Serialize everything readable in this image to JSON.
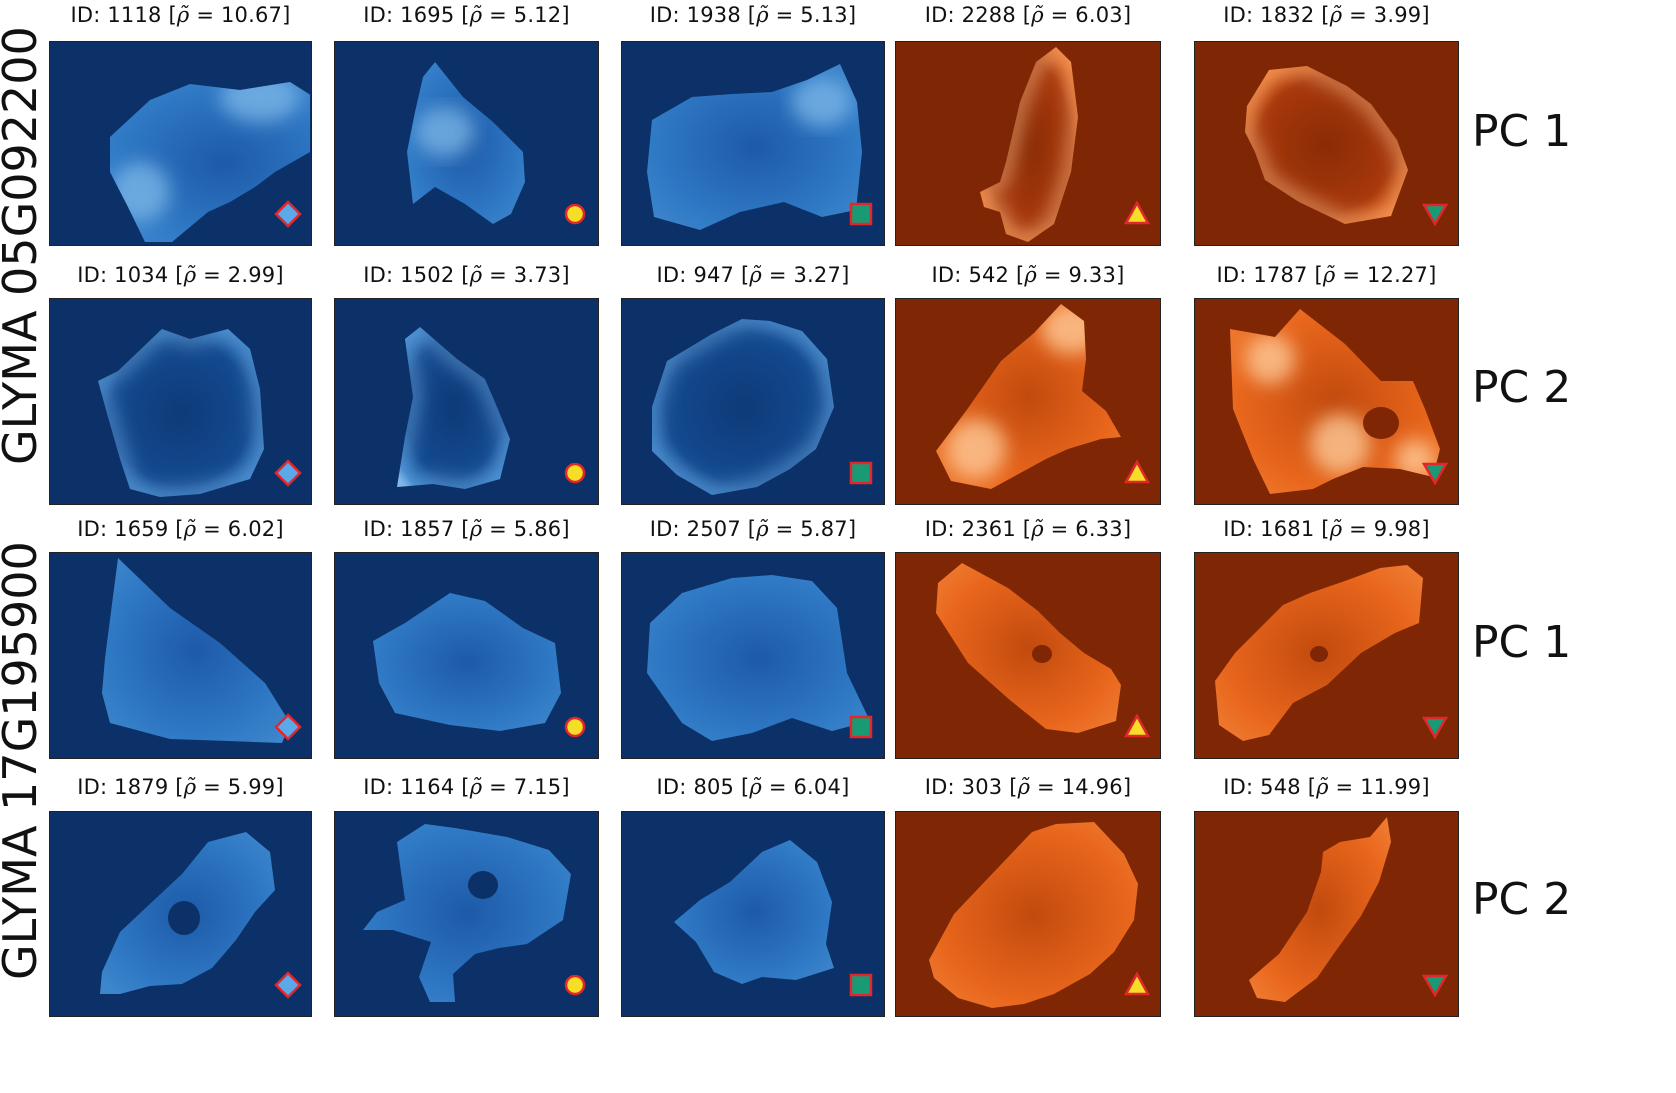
{
  "figure": {
    "gene_labels": [
      "GLYMA 05G092200",
      "GLYMA 17G195900"
    ],
    "pc_labels": [
      "PC 1",
      "PC 2",
      "PC 1",
      "PC 2"
    ],
    "colors": {
      "blue_bg": "#0b3168",
      "orange_bg": "#7f2604",
      "blue_cell": "#2f78c4",
      "orange_cell": "#e8661c"
    },
    "marker_colors": {
      "diamond": "#5aa9ea",
      "circle": "#f6dd28",
      "square": "#1a9a74",
      "triangle_up": "#f6dd28",
      "triangle_down": "#1a9a74",
      "edge": "#e0282c"
    },
    "rows": [
      {
        "panels": [
          {
            "id": "1118",
            "rho": "10.67",
            "colormap": "blue",
            "marker": "diamond"
          },
          {
            "id": "1695",
            "rho": "5.12",
            "colormap": "blue",
            "marker": "circle"
          },
          {
            "id": "1938",
            "rho": "5.13",
            "colormap": "blue",
            "marker": "square"
          },
          {
            "id": "2288",
            "rho": "6.03",
            "colormap": "orange",
            "marker": "triangle_up"
          },
          {
            "id": "1832",
            "rho": "3.99",
            "colormap": "orange",
            "marker": "triangle_down"
          }
        ]
      },
      {
        "panels": [
          {
            "id": "1034",
            "rho": "2.99",
            "colormap": "blue",
            "marker": "diamond"
          },
          {
            "id": "1502",
            "rho": "3.73",
            "colormap": "blue",
            "marker": "circle"
          },
          {
            "id": "947",
            "rho": "3.27",
            "colormap": "blue",
            "marker": "square"
          },
          {
            "id": "542",
            "rho": "9.33",
            "colormap": "orange",
            "marker": "triangle_up"
          },
          {
            "id": "1787",
            "rho": "12.27",
            "colormap": "orange",
            "marker": "triangle_down"
          }
        ]
      },
      {
        "panels": [
          {
            "id": "1659",
            "rho": "6.02",
            "colormap": "blue",
            "marker": "diamond"
          },
          {
            "id": "1857",
            "rho": "5.86",
            "colormap": "blue",
            "marker": "circle"
          },
          {
            "id": "2507",
            "rho": "5.87",
            "colormap": "blue",
            "marker": "square"
          },
          {
            "id": "2361",
            "rho": "6.33",
            "colormap": "orange",
            "marker": "triangle_up"
          },
          {
            "id": "1681",
            "rho": "9.98",
            "colormap": "orange",
            "marker": "triangle_down"
          }
        ]
      },
      {
        "panels": [
          {
            "id": "1879",
            "rho": "5.99",
            "colormap": "blue",
            "marker": "diamond"
          },
          {
            "id": "1164",
            "rho": "7.15",
            "colormap": "blue",
            "marker": "circle"
          },
          {
            "id": "805",
            "rho": "6.04",
            "colormap": "blue",
            "marker": "square"
          },
          {
            "id": "303",
            "rho": "14.96",
            "colormap": "orange",
            "marker": "triangle_up"
          },
          {
            "id": "548",
            "rho": "11.99",
            "colormap": "orange",
            "marker": "triangle_down"
          }
        ]
      }
    ]
  }
}
